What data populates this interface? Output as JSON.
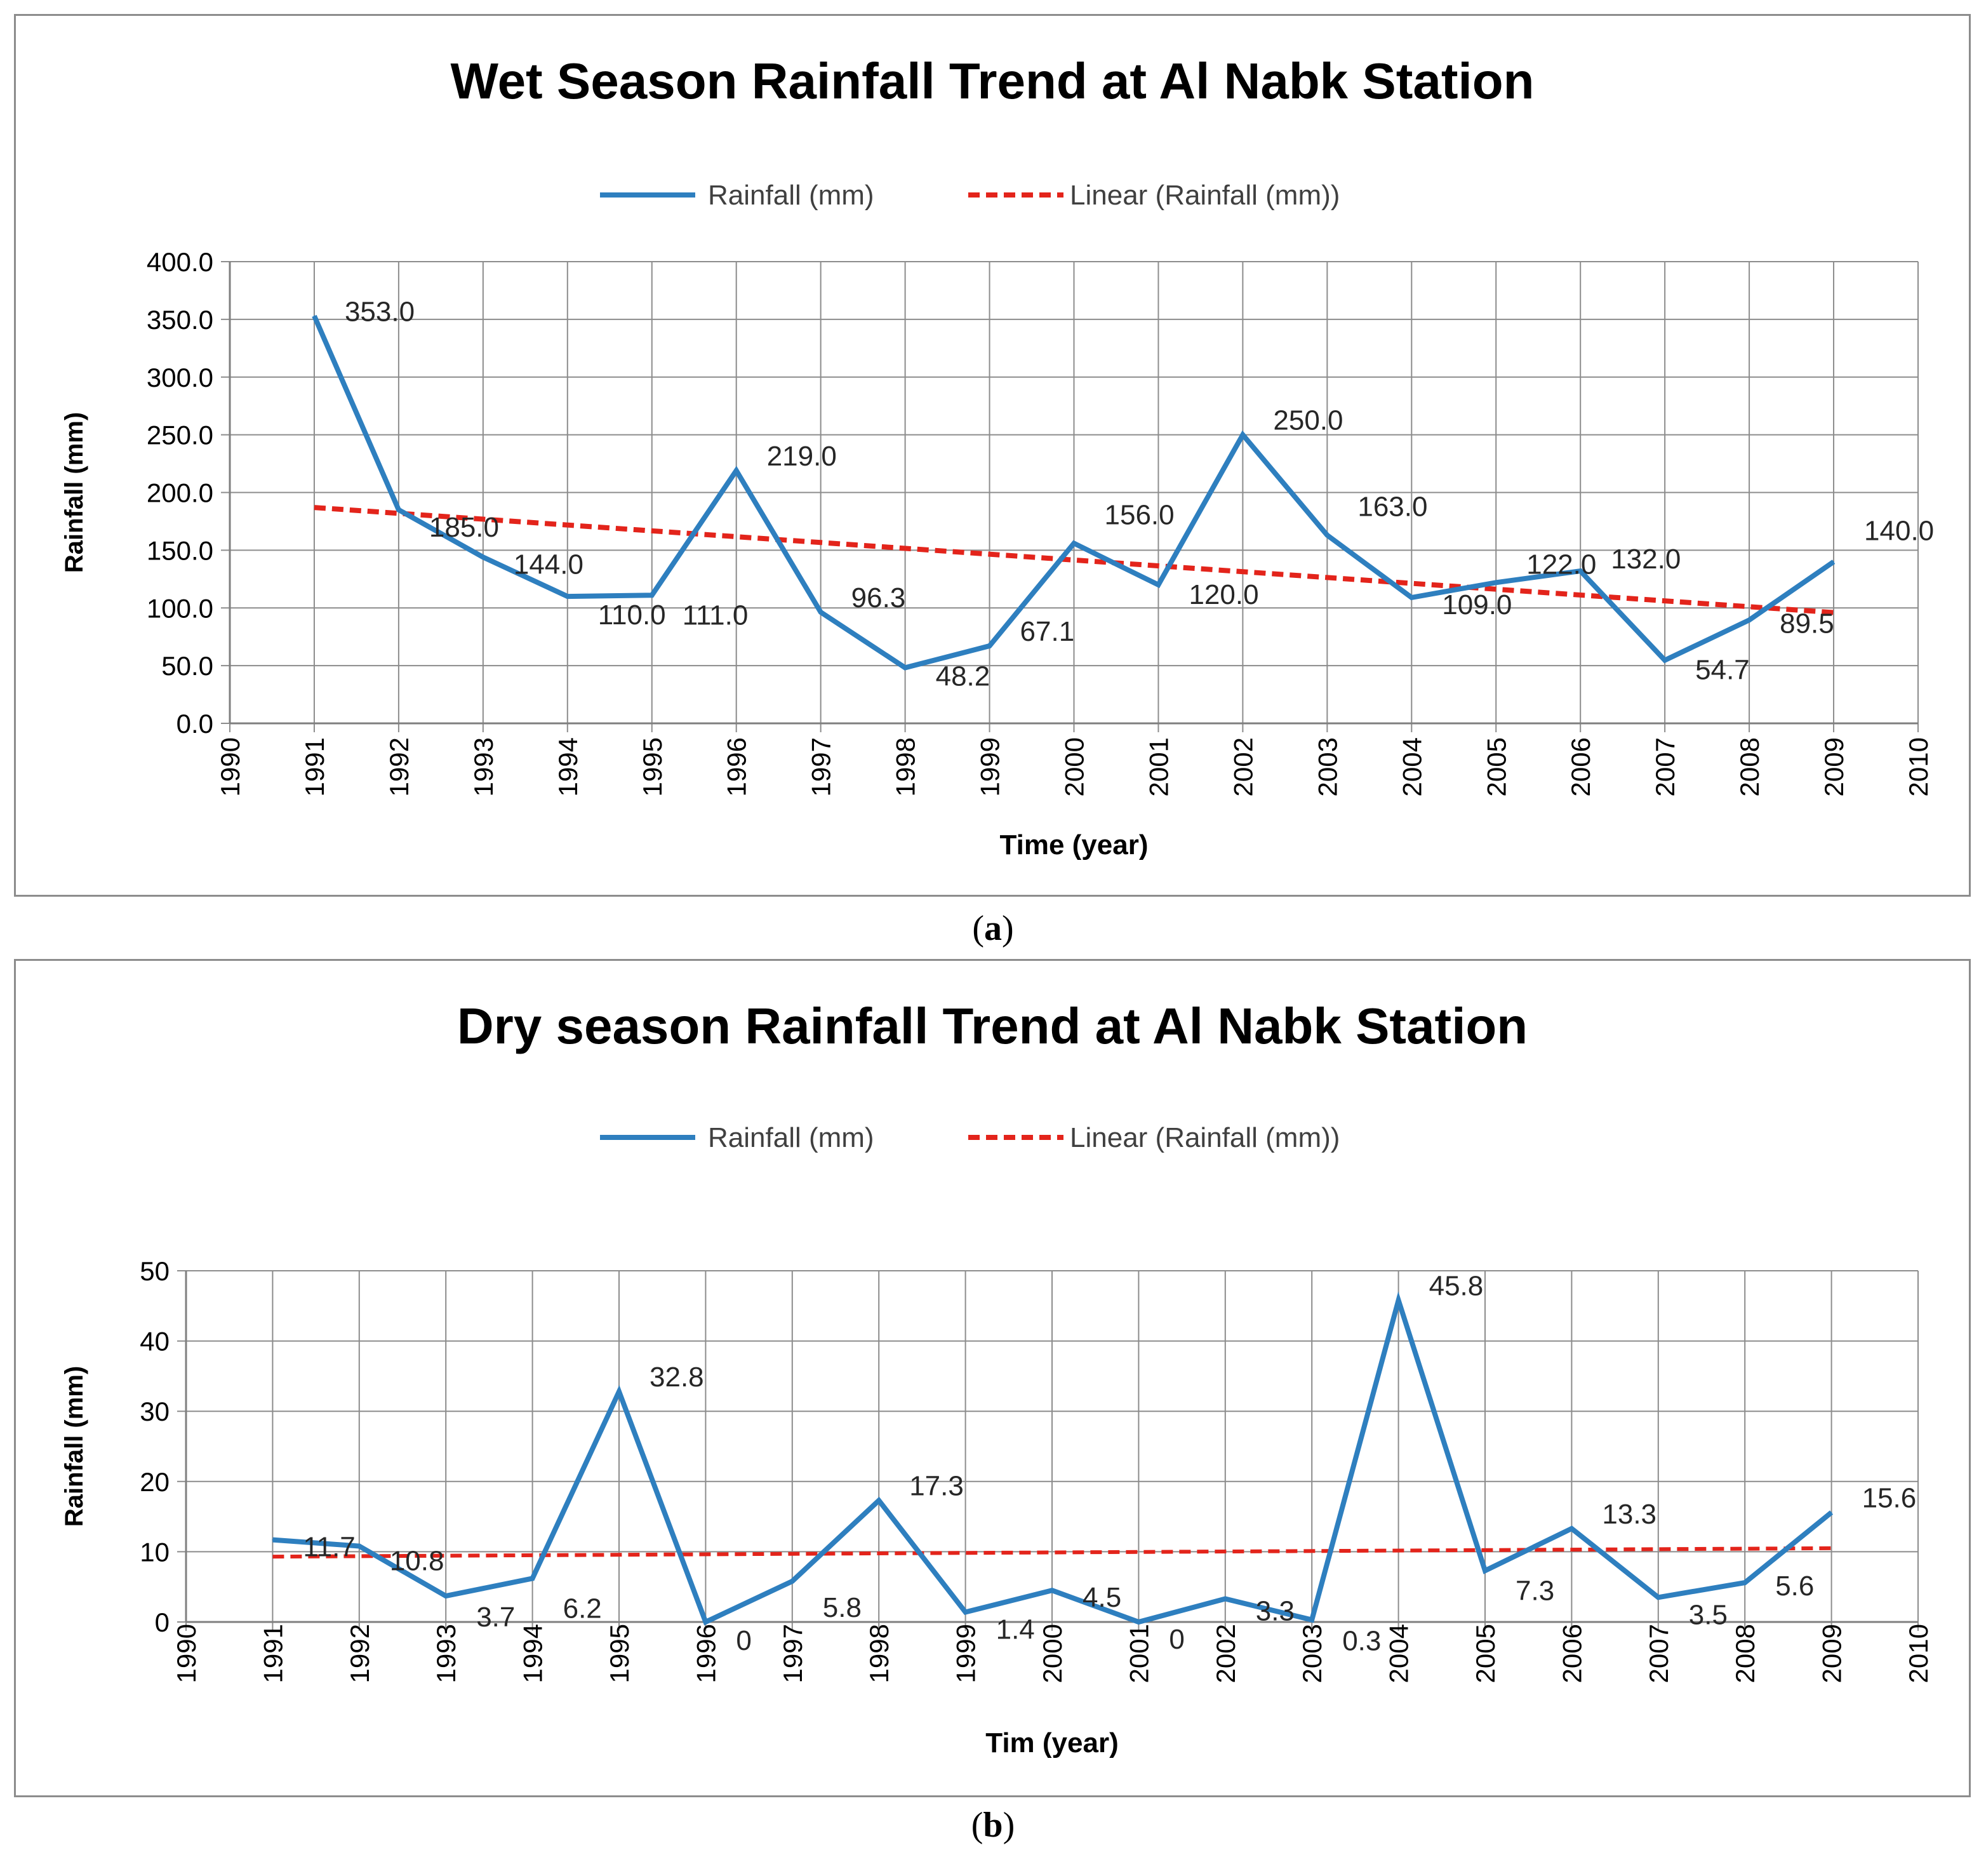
{
  "charts": [
    {
      "caption_letter": "a",
      "chart_data": {
        "type": "line",
        "title": "Wet Season Rainfall Trend at Al Nabk Station",
        "xlabel": "Time (year)",
        "ylabel": "Rainfall (mm)",
        "xlim": [
          1990,
          2010
        ],
        "ylim": [
          0,
          400
        ],
        "x_ticks": [
          "1990",
          "1991",
          "1992",
          "1993",
          "1994",
          "1995",
          "1996",
          "1997",
          "1998",
          "1999",
          "2000",
          "2001",
          "2002",
          "2003",
          "2004",
          "2005",
          "2006",
          "2007",
          "2008",
          "2009",
          "2010"
        ],
        "y_ticks": [
          "0.0",
          "50.0",
          "100.0",
          "150.0",
          "200.0",
          "250.0",
          "300.0",
          "350.0",
          "400.0"
        ],
        "grid": true,
        "legend_position": "top",
        "x": [
          1991,
          1992,
          1993,
          1994,
          1995,
          1996,
          1997,
          1998,
          1999,
          2000,
          2001,
          2002,
          2003,
          2004,
          2005,
          2006,
          2007,
          2008,
          2009
        ],
        "series": [
          {
            "name": "Rainfall (mm)",
            "color": "#2e7fbf",
            "values": [
              353.0,
              185.0,
              144.0,
              110.0,
              111.0,
              219.0,
              96.3,
              48.2,
              67.1,
              156.0,
              120.0,
              250.0,
              163.0,
              109.0,
              122.0,
              132.0,
              54.7,
              89.5,
              140.0
            ],
            "labels": [
              "353.0",
              "185.0",
              "144.0",
              "110.0",
              "111.0",
              "219.0",
              "96.3",
              "48.2",
              "67.1",
              "156.0",
              "120.0",
              "250.0",
              "163.0",
              "109.0",
              "122.0",
              "132.0",
              "54.7",
              "89.5",
              "140.0"
            ]
          },
          {
            "name": "Linear (Rainfall (mm))",
            "color": "#e3241b",
            "style": "dashed",
            "trend_start": [
              1991,
              187
            ],
            "trend_end": [
              2009,
              96
            ]
          }
        ]
      }
    },
    {
      "caption_letter": "b",
      "chart_data": {
        "type": "line",
        "title": "Dry season Rainfall Trend at Al Nabk Station",
        "xlabel": "Tim (year)",
        "ylabel": "Rainfall (mm)",
        "xlim": [
          1990,
          2010
        ],
        "ylim": [
          0,
          50
        ],
        "x_ticks": [
          "1990",
          "1991",
          "1992",
          "1993",
          "1994",
          "1995",
          "1996",
          "1997",
          "1998",
          "1999",
          "2000",
          "2001",
          "2002",
          "2003",
          "2004",
          "2005",
          "2006",
          "2007",
          "2008",
          "2009",
          "2010"
        ],
        "y_ticks": [
          "0",
          "10",
          "20",
          "30",
          "40",
          "50"
        ],
        "grid": true,
        "legend_position": "top",
        "x": [
          1991,
          1992,
          1993,
          1994,
          1995,
          1996,
          1997,
          1998,
          1999,
          2000,
          2001,
          2002,
          2003,
          2004,
          2005,
          2006,
          2007,
          2008,
          2009
        ],
        "series": [
          {
            "name": "Rainfall (mm)",
            "color": "#2e7fbf",
            "values": [
              11.7,
              10.8,
              3.7,
              6.2,
              32.8,
              0,
              5.8,
              17.3,
              1.4,
              4.5,
              0,
              3.3,
              0.3,
              45.8,
              7.3,
              13.3,
              3.5,
              5.6,
              15.6
            ],
            "labels": [
              "11.7",
              "10.8",
              "3.7",
              "6.2",
              "32.8",
              "0",
              "5.8",
              "17.3",
              "1.4",
              "4.5",
              "0",
              "3.3",
              "0.3",
              "45.8",
              "7.3",
              "13.3",
              "3.5",
              "5.6",
              "15.6"
            ]
          },
          {
            "name": "Linear (Rainfall (mm))",
            "color": "#e3241b",
            "style": "dashed",
            "trend_start": [
              1991,
              9.3
            ],
            "trend_end": [
              2009,
              10.5
            ]
          }
        ]
      }
    }
  ]
}
